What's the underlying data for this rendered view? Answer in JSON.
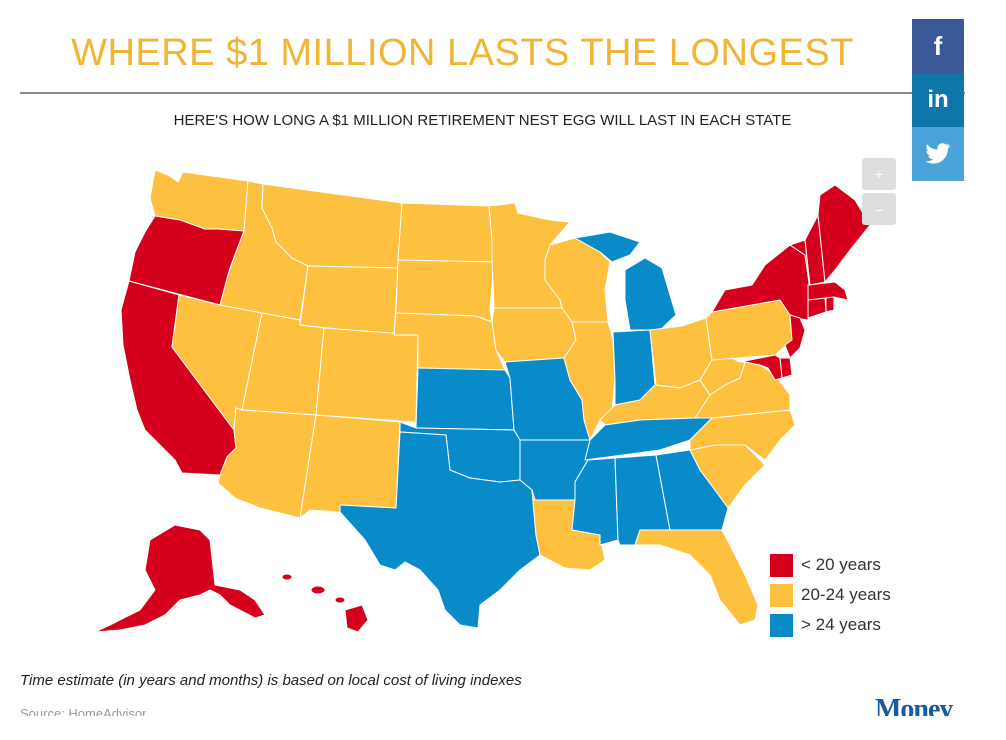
{
  "header": {
    "title": "WHERE $1 MILLION LASTS THE LONGEST",
    "subtitle": "HERE'S HOW LONG A $1 MILLION RETIREMENT NEST EGG WILL LAST IN EACH STATE"
  },
  "share": [
    {
      "label": "f",
      "icon": "facebook-icon",
      "color": "#3b5998"
    },
    {
      "label": "in",
      "icon": "linkedin-icon",
      "color": "#0e76a8"
    },
    {
      "label": "",
      "icon": "twitter-icon",
      "color": "#4aa3d8"
    }
  ],
  "zoom": {
    "in_label": "+",
    "out_label": "–"
  },
  "colors": {
    "short": "#d4001c",
    "mid": "#fec03f",
    "long": "#0a8bc9"
  },
  "legend": [
    {
      "label": "< 20 years",
      "color": "#d4001c"
    },
    {
      "label": "20-24 years",
      "color": "#fec03f"
    },
    {
      "label": "> 24 years",
      "color": "#0a8bc9"
    }
  ],
  "map_data": {
    "categories": {
      "short": "< 20 years",
      "mid": "20-24 years",
      "long": "> 24 years"
    },
    "states": {
      "WA": "mid",
      "OR": "short",
      "CA": "short",
      "NV": "mid",
      "ID": "mid",
      "MT": "mid",
      "WY": "mid",
      "UT": "mid",
      "AZ": "mid",
      "CO": "mid",
      "NM": "mid",
      "ND": "mid",
      "SD": "mid",
      "NE": "mid",
      "KS": "long",
      "OK": "long",
      "TX": "long",
      "MN": "mid",
      "IA": "mid",
      "MO": "long",
      "AR": "long",
      "LA": "mid",
      "WI": "mid",
      "IL": "mid",
      "MI": "long",
      "IN": "long",
      "OH": "mid",
      "KY": "mid",
      "TN": "long",
      "MS": "long",
      "AL": "long",
      "GA": "long",
      "FL": "mid",
      "SC": "mid",
      "NC": "mid",
      "VA": "mid",
      "WV": "mid",
      "PA": "mid",
      "NY": "short",
      "NJ": "short",
      "DE": "short",
      "MD": "short",
      "CT": "short",
      "RI": "short",
      "MA": "short",
      "VT": "short",
      "NH": "short",
      "ME": "short",
      "AK": "short",
      "HI": "short"
    }
  },
  "footer": {
    "note": "Time estimate (in years and months) is based on local cost of living indexes",
    "source": "Source: HomeAdvisor",
    "logo": "Money"
  }
}
